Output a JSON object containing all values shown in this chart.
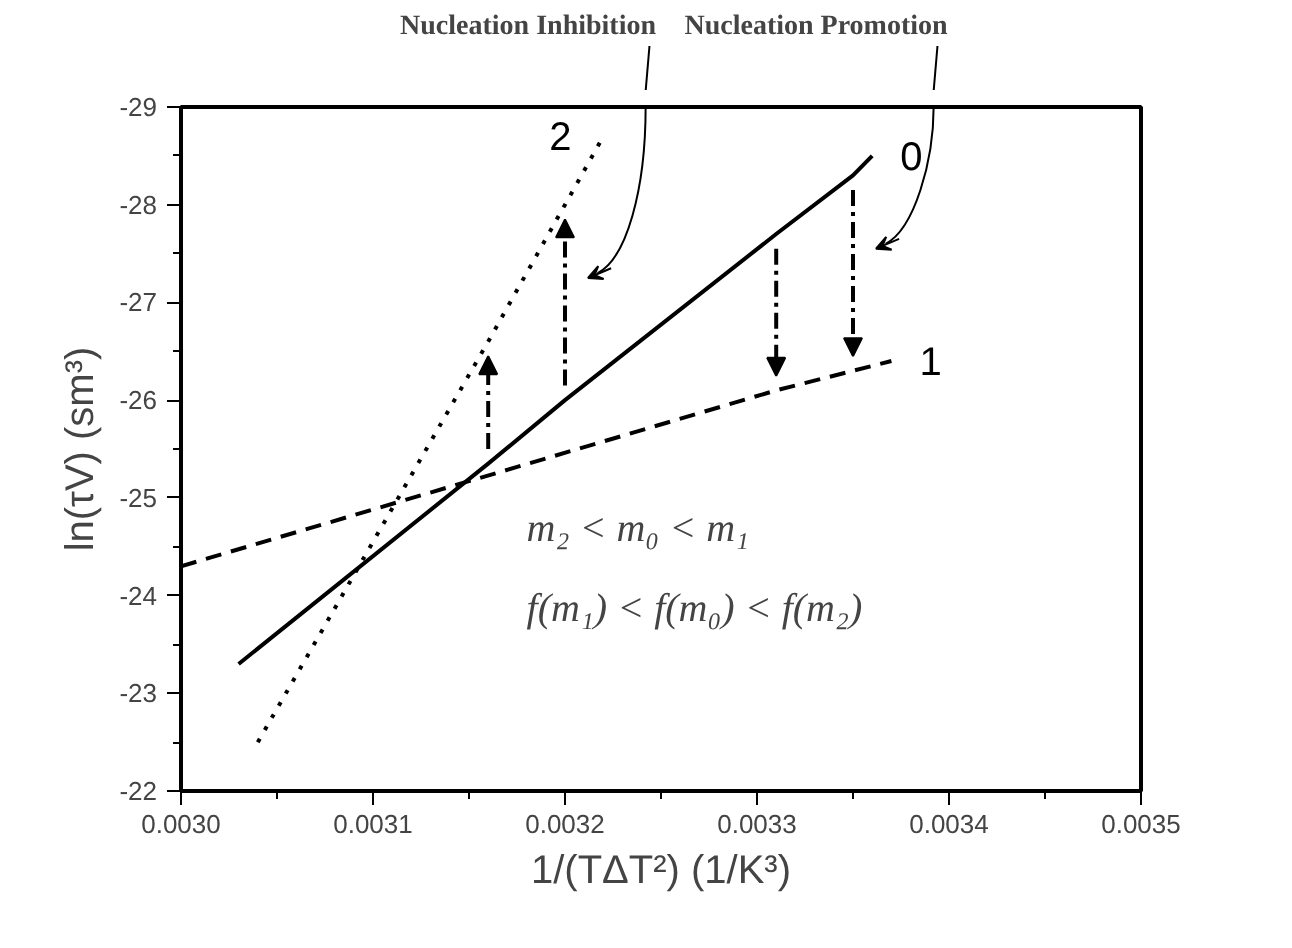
{
  "chart_data": {
    "type": "line",
    "xlabel": "1/(TΔT²) (1/K³)",
    "ylabel": "ln(τV) (sm³)",
    "xlim": [
      0.003,
      0.0035
    ],
    "ylim": [
      -22,
      -29
    ],
    "xticks": [
      {
        "value": 0.003,
        "label": "0.0030"
      },
      {
        "value": 0.0031,
        "label": "0.0031"
      },
      {
        "value": 0.0032,
        "label": "0.0032"
      },
      {
        "value": 0.0033,
        "label": "0.0033"
      },
      {
        "value": 0.0034,
        "label": "0.0034"
      },
      {
        "value": 0.0035,
        "label": "0.0035"
      }
    ],
    "yticks": [
      -29,
      -28,
      -27,
      -26,
      -25,
      -24,
      -23,
      -22
    ],
    "grid": false,
    "marker": "none",
    "series": [
      {
        "name": "0",
        "color": "#000000",
        "line_style": "solid",
        "x": [
          0.00303,
          0.00316,
          0.0032,
          0.00331,
          0.00335,
          0.00336
        ],
        "values": [
          -23.3,
          -25.35,
          -26.0,
          -27.7,
          -28.3,
          -28.5
        ]
      },
      {
        "name": "1",
        "color": "#000000",
        "line_style": "dashed",
        "x": [
          0.003,
          0.00331,
          0.00335,
          0.00337
        ],
        "values": [
          -24.3,
          -26.1,
          -26.3,
          -26.4
        ]
      },
      {
        "name": "2",
        "color": "#000000",
        "line_style": "dotted",
        "x": [
          0.00304,
          0.00316,
          0.0032,
          0.00322
        ],
        "values": [
          -22.5,
          -26.6,
          -28.0,
          -28.7
        ]
      }
    ],
    "annotations": [
      "Nucleation Inhibition",
      "Nucleation Promotion",
      "m₂ < m₀ < m₁",
      "f(m₁) < f(m₀) < f(m₂)"
    ]
  }
}
